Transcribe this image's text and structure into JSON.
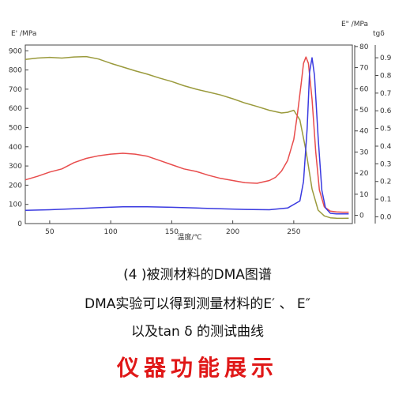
{
  "chart_data": {
    "type": "line",
    "xlabel": "温度/℃",
    "ylabel_left": "E' /MPa",
    "ylabel_right1": "E\" /MPa",
    "ylabel_right2": "tgδ",
    "xlim": [
      30,
      298
    ],
    "xticks": [
      50,
      100,
      150,
      200,
      250
    ],
    "y_left": {
      "lim": [
        0,
        930
      ],
      "ticks": [
        0,
        100,
        200,
        300,
        400,
        500,
        600,
        700,
        800,
        900
      ]
    },
    "y_right1": {
      "lim": [
        -3.9,
        80.7
      ],
      "ticks": [
        0,
        10,
        20,
        30,
        40,
        50,
        60,
        70,
        80
      ]
    },
    "y_right2": {
      "lim": [
        -0.038,
        0.972
      ],
      "ticks": [
        0.0,
        0.1,
        0.2,
        0.3,
        0.4,
        0.5,
        0.6,
        0.7,
        0.8,
        0.9
      ]
    },
    "grid": false,
    "series": [
      {
        "axis": "left",
        "color": "#9a9a3c",
        "x": [
          30,
          40,
          50,
          60,
          70,
          80,
          90,
          100,
          110,
          120,
          130,
          140,
          150,
          160,
          170,
          180,
          190,
          200,
          210,
          220,
          230,
          240,
          245,
          250,
          255,
          260,
          265,
          270,
          275,
          280,
          285,
          290,
          295
        ],
        "values": [
          855,
          862,
          866,
          862,
          868,
          870,
          857,
          835,
          815,
          796,
          778,
          758,
          740,
          718,
          700,
          685,
          670,
          650,
          628,
          610,
          590,
          576,
          580,
          590,
          540,
          380,
          180,
          70,
          40,
          30,
          28,
          27,
          28
        ]
      },
      {
        "axis": "right1",
        "color": "#e84c4c",
        "x": [
          30,
          40,
          50,
          60,
          70,
          80,
          90,
          100,
          110,
          120,
          130,
          140,
          150,
          160,
          170,
          180,
          190,
          200,
          210,
          220,
          230,
          235,
          240,
          245,
          250,
          253,
          256,
          258,
          260,
          262,
          265,
          268,
          271,
          275,
          280,
          285,
          290,
          295
        ],
        "values": [
          16.8,
          18.5,
          20.5,
          22,
          25,
          27,
          28.2,
          29,
          29.4,
          29,
          28,
          26,
          24,
          22,
          20.8,
          19,
          17.5,
          16.5,
          15.5,
          15.2,
          16.5,
          18,
          21,
          26,
          36,
          48,
          62,
          72,
          75,
          72,
          55,
          30,
          12,
          4,
          2,
          1.6,
          1.5,
          1.5
        ]
      },
      {
        "axis": "right2",
        "color": "#3a3ae0",
        "x": [
          30,
          50,
          70,
          90,
          110,
          130,
          150,
          170,
          190,
          210,
          230,
          245,
          255,
          258,
          261,
          263,
          265,
          267,
          270,
          273,
          276,
          280,
          285,
          290,
          295
        ],
        "values": [
          0.037,
          0.04,
          0.046,
          0.052,
          0.057,
          0.057,
          0.054,
          0.05,
          0.046,
          0.042,
          0.04,
          0.05,
          0.09,
          0.2,
          0.5,
          0.82,
          0.9,
          0.8,
          0.45,
          0.15,
          0.05,
          0.02,
          0.017,
          0.017,
          0.017
        ]
      }
    ]
  },
  "caption": {
    "line1": "(4 )被测材料的DMA图谱",
    "line2": "DMA实验可以得到测量材料的E′ 、 E″",
    "line3": "以及tan δ 的测试曲线",
    "title": "仪器功能展示",
    "title_color": "#e01818"
  }
}
